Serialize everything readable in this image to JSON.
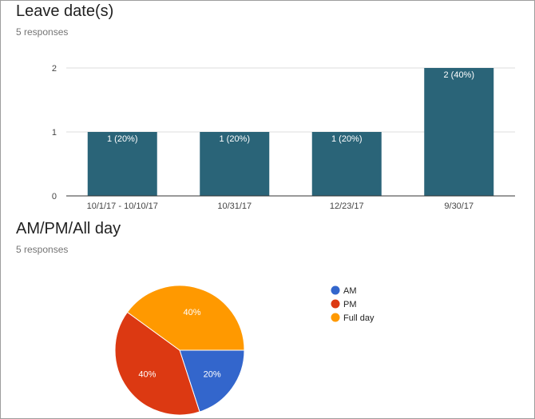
{
  "sections": {
    "leave_dates": {
      "title": "Leave date(s)",
      "responses": "5 responses"
    },
    "am_pm": {
      "title": "AM/PM/All day",
      "responses": "5 responses"
    }
  },
  "colors": {
    "bar": "#2a6478",
    "axis": "#333333",
    "grid": "#dddddd",
    "am": "#3366cc",
    "pm": "#dc3912",
    "full_day": "#ff9900"
  },
  "chart_data": [
    {
      "type": "bar",
      "categories": [
        "10/1/17 - 10/10/17",
        "10/31/17",
        "12/23/17",
        "9/30/17"
      ],
      "values": [
        1,
        1,
        1,
        2
      ],
      "data_labels": [
        "1 (20%)",
        "1 (20%)",
        "1 (20%)",
        "2 (40%)"
      ],
      "ylim": [
        0,
        2
      ],
      "yticks": [
        "0",
        "1",
        "2"
      ],
      "grid": true
    },
    {
      "type": "pie",
      "labels": [
        "AM",
        "PM",
        "Full day"
      ],
      "values": [
        1,
        2,
        2
      ],
      "percent_labels": [
        "20%",
        "40%",
        "40%"
      ],
      "colors": [
        "#3366cc",
        "#dc3912",
        "#ff9900"
      ],
      "legend": "right"
    }
  ]
}
